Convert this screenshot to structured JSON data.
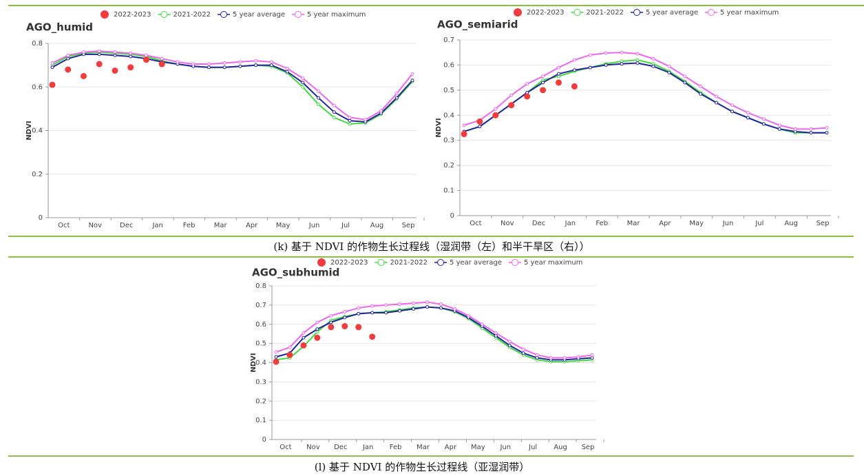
{
  "chart_data": [
    {
      "type": "line",
      "title": "AGO_humid",
      "y_label": "NDVI",
      "categories": [
        null,
        "Oct",
        null,
        "Nov",
        null,
        "Dec",
        null,
        "Jan",
        null,
        "Feb",
        null,
        "Mar",
        null,
        "Apr",
        null,
        "May",
        null,
        "Jun",
        null,
        "Jul",
        null,
        "Aug",
        null,
        "Sep"
      ],
      "ylim": [
        0,
        0.8
      ],
      "yticks": [
        0,
        0.2,
        0.4,
        0.6,
        0.8
      ],
      "grid": true,
      "series": [
        {
          "name": "2022-2023",
          "color": "#f03c3c",
          "mode": "markers",
          "values": [
            0.61,
            0.68,
            0.65,
            0.705,
            0.675,
            0.69,
            0.725,
            0.705,
            null,
            null,
            null,
            null,
            null,
            null,
            null,
            null,
            null,
            null,
            null,
            null,
            null,
            null,
            null,
            null
          ]
        },
        {
          "name": "2021-2022",
          "color": "#3ddc3d",
          "mode": "lines+markers",
          "values": [
            0.7,
            0.74,
            0.755,
            0.76,
            0.755,
            0.75,
            0.74,
            0.72,
            0.705,
            0.695,
            0.69,
            0.69,
            0.695,
            0.7,
            0.695,
            0.665,
            0.6,
            0.52,
            0.46,
            0.43,
            0.435,
            0.475,
            0.545,
            0.625
          ]
        },
        {
          "name": "5 year average",
          "color": "#22229e",
          "mode": "lines+markers",
          "values": [
            0.69,
            0.73,
            0.75,
            0.75,
            0.745,
            0.74,
            0.73,
            0.715,
            0.705,
            0.695,
            0.69,
            0.69,
            0.695,
            0.7,
            0.7,
            0.67,
            0.62,
            0.55,
            0.485,
            0.445,
            0.44,
            0.48,
            0.55,
            0.63
          ]
        },
        {
          "name": "5 year maximum",
          "color": "#ee66ee",
          "mode": "lines+markers",
          "values": [
            0.71,
            0.745,
            0.76,
            0.765,
            0.76,
            0.755,
            0.745,
            0.73,
            0.715,
            0.705,
            0.705,
            0.71,
            0.715,
            0.72,
            0.715,
            0.685,
            0.64,
            0.58,
            0.515,
            0.46,
            0.45,
            0.49,
            0.57,
            0.66
          ]
        }
      ]
    },
    {
      "type": "line",
      "title": "AGO_semiarid",
      "y_label": "NDVI",
      "categories": [
        null,
        "Oct",
        null,
        "Nov",
        null,
        "Dec",
        null,
        "Jan",
        null,
        "Feb",
        null,
        "Mar",
        null,
        "Apr",
        null,
        "May",
        null,
        "Jun",
        null,
        "Jul",
        null,
        "Aug",
        null,
        "Sep"
      ],
      "ylim": [
        0,
        0.7
      ],
      "yticks": [
        0,
        0.1,
        0.2,
        0.3,
        0.4,
        0.5,
        0.6,
        0.7
      ],
      "grid": true,
      "series": [
        {
          "name": "2022-2023",
          "color": "#f03c3c",
          "mode": "markers",
          "values": [
            0.325,
            0.375,
            0.4,
            0.44,
            0.475,
            0.5,
            0.53,
            0.515,
            null,
            null,
            null,
            null,
            null,
            null,
            null,
            null,
            null,
            null,
            null,
            null,
            null,
            null,
            null,
            null
          ]
        },
        {
          "name": "2021-2022",
          "color": "#3ddc3d",
          "mode": "lines+markers",
          "values": [
            0.335,
            0.355,
            0.4,
            0.445,
            0.49,
            0.54,
            0.555,
            0.575,
            0.59,
            0.605,
            0.615,
            0.62,
            0.605,
            0.575,
            0.535,
            0.49,
            0.45,
            0.415,
            0.39,
            0.365,
            0.345,
            0.33,
            0.33,
            0.33
          ]
        },
        {
          "name": "5 year average",
          "color": "#22229e",
          "mode": "lines+markers",
          "values": [
            0.335,
            0.355,
            0.4,
            0.445,
            0.49,
            0.53,
            0.565,
            0.58,
            0.59,
            0.6,
            0.605,
            0.608,
            0.595,
            0.57,
            0.53,
            0.485,
            0.45,
            0.415,
            0.39,
            0.365,
            0.345,
            0.335,
            0.33,
            0.33
          ]
        },
        {
          "name": "5 year maximum",
          "color": "#ee66ee",
          "mode": "lines+markers",
          "values": [
            0.36,
            0.38,
            0.425,
            0.48,
            0.525,
            0.555,
            0.59,
            0.62,
            0.64,
            0.648,
            0.65,
            0.645,
            0.625,
            0.595,
            0.555,
            0.515,
            0.475,
            0.44,
            0.41,
            0.385,
            0.36,
            0.345,
            0.345,
            0.35
          ]
        }
      ]
    },
    {
      "type": "line",
      "title": "AGO_subhumid",
      "y_label": "NDVI",
      "categories": [
        null,
        "Oct",
        null,
        "Nov",
        null,
        "Dec",
        null,
        "Jan",
        null,
        "Feb",
        null,
        "Mar",
        null,
        "Apr",
        null,
        "May",
        null,
        "Jun",
        null,
        "Jul",
        null,
        "Aug",
        null,
        "Sep"
      ],
      "ylim": [
        0,
        0.8
      ],
      "yticks": [
        0,
        0.1,
        0.2,
        0.3,
        0.4,
        0.5,
        0.6,
        0.7,
        0.8
      ],
      "grid": true,
      "series": [
        {
          "name": "2022-2023",
          "color": "#f03c3c",
          "mode": "markers",
          "values": [
            0.405,
            0.44,
            0.49,
            0.53,
            0.585,
            0.59,
            0.585,
            0.535,
            null,
            null,
            null,
            null,
            null,
            null,
            null,
            null,
            null,
            null,
            null,
            null,
            null,
            null,
            null,
            null
          ]
        },
        {
          "name": "2021-2022",
          "color": "#3ddc3d",
          "mode": "lines+markers",
          "values": [
            0.415,
            0.425,
            0.485,
            0.56,
            0.62,
            0.64,
            0.655,
            0.66,
            0.665,
            0.675,
            0.685,
            0.69,
            0.685,
            0.665,
            0.63,
            0.58,
            0.53,
            0.48,
            0.44,
            0.415,
            0.405,
            0.405,
            0.41,
            0.415
          ]
        },
        {
          "name": "5 year average",
          "color": "#22229e",
          "mode": "lines+markers",
          "values": [
            0.43,
            0.45,
            0.53,
            0.575,
            0.61,
            0.635,
            0.655,
            0.66,
            0.66,
            0.67,
            0.68,
            0.69,
            0.685,
            0.67,
            0.635,
            0.59,
            0.54,
            0.49,
            0.45,
            0.425,
            0.415,
            0.415,
            0.42,
            0.425
          ]
        },
        {
          "name": "5 year maximum",
          "color": "#ee66ee",
          "mode": "lines+markers",
          "values": [
            0.455,
            0.48,
            0.555,
            0.61,
            0.645,
            0.665,
            0.685,
            0.695,
            0.7,
            0.705,
            0.71,
            0.715,
            0.705,
            0.68,
            0.645,
            0.6,
            0.555,
            0.51,
            0.47,
            0.44,
            0.425,
            0.425,
            0.43,
            0.44
          ]
        }
      ]
    }
  ],
  "captions": [
    "(k) 基于 NDVI 的作物生长过程线（湿润带（左）和半干旱区（右））",
    "(l) 基于 NDVI 的作物生长过程线（亚湿润带）"
  ]
}
